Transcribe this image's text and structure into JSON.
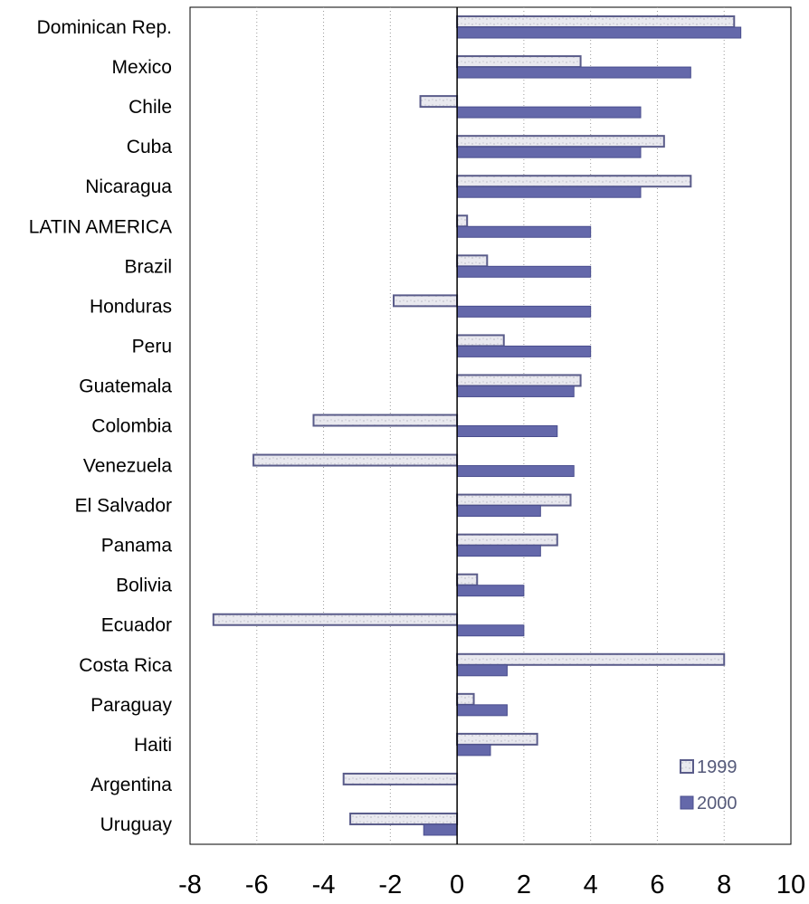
{
  "chart_data": {
    "type": "bar",
    "orientation": "horizontal",
    "categories": [
      "Dominican Rep.",
      "Mexico",
      "Chile",
      "Cuba",
      "Nicaragua",
      "LATIN AMERICA",
      "Brazil",
      "Honduras",
      "Peru",
      "Guatemala",
      "Colombia",
      "Venezuela",
      "El Salvador",
      "Panama",
      "Bolivia",
      "Ecuador",
      "Costa Rica",
      "Paraguay",
      "Haiti",
      "Argentina",
      "Uruguay"
    ],
    "series": [
      {
        "name": "1999",
        "color": "#e6e6ee",
        "edge_color": "#5a5c8a",
        "values": [
          8.3,
          3.7,
          -1.1,
          6.2,
          7.0,
          0.3,
          0.9,
          -1.9,
          1.4,
          3.7,
          -4.3,
          -6.1,
          3.4,
          3.0,
          0.6,
          -7.3,
          8.0,
          0.5,
          2.4,
          -3.4,
          -3.2
        ]
      },
      {
        "name": "2000",
        "color": "#6468aa",
        "edge_color": "#4a4e8e",
        "values": [
          8.5,
          7.0,
          5.5,
          5.5,
          5.5,
          4.0,
          4.0,
          4.0,
          4.0,
          3.5,
          3.0,
          3.5,
          2.5,
          2.5,
          2.0,
          2.0,
          1.5,
          1.5,
          1.0,
          0.0,
          -1.0
        ]
      }
    ],
    "x_ticks": [
      "-8",
      "-6",
      "-4",
      "-2",
      "0",
      "2",
      "4",
      "6",
      "8",
      "10"
    ],
    "xlim": [
      -8,
      10
    ],
    "grid": "vertical dotted",
    "legend_position": "bottom-right",
    "title": "",
    "xlabel": "",
    "ylabel": ""
  }
}
